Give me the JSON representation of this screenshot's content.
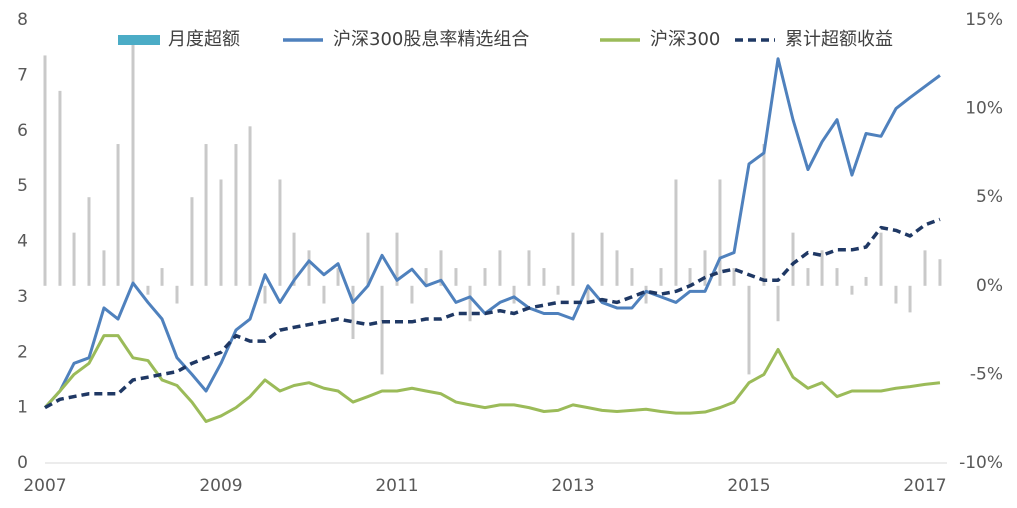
{
  "chart_data": {
    "type": "line",
    "x": [
      2007,
      2007.17,
      2007.33,
      2007.5,
      2007.67,
      2007.83,
      2008,
      2008.17,
      2008.33,
      2008.5,
      2008.67,
      2008.83,
      2009,
      2009.17,
      2009.33,
      2009.5,
      2009.67,
      2009.83,
      2010,
      2010.17,
      2010.33,
      2010.5,
      2010.67,
      2010.83,
      2011,
      2011.17,
      2011.33,
      2011.5,
      2011.67,
      2011.83,
      2012,
      2012.17,
      2012.33,
      2012.5,
      2012.67,
      2012.83,
      2013,
      2013.17,
      2013.33,
      2013.5,
      2013.67,
      2013.83,
      2014,
      2014.17,
      2014.33,
      2014.5,
      2014.67,
      2014.83,
      2015,
      2015.17,
      2015.33,
      2015.5,
      2015.67,
      2015.83,
      2016,
      2016.17,
      2016.33,
      2016.5,
      2016.67,
      2016.83,
      2017,
      2017.17
    ],
    "series": [
      {
        "name": "月度超额",
        "kind": "bar",
        "axis": "y2",
        "color": "#c9c9c9",
        "values": [
          13,
          11,
          3,
          5,
          2,
          8,
          14,
          -0.5,
          1,
          -1,
          5,
          8,
          6,
          8,
          9,
          -1,
          6,
          3,
          2,
          -1,
          1,
          -3,
          3,
          -5,
          3,
          -1,
          1,
          2,
          1,
          -2,
          1,
          2,
          -1,
          2,
          1,
          -0.5,
          3,
          -1,
          3,
          2,
          1,
          -1,
          1,
          6,
          1,
          2,
          6,
          1,
          -5,
          8,
          -2,
          3,
          1,
          2,
          1,
          -0.5,
          0.5,
          3,
          -1,
          -1.5,
          2,
          1.5
        ]
      },
      {
        "name": "沪深300股息率精选组合",
        "kind": "line",
        "color": "#4f81bd",
        "values": [
          1.0,
          1.3,
          1.8,
          1.9,
          2.8,
          2.6,
          3.25,
          2.9,
          2.6,
          1.9,
          1.6,
          1.3,
          1.8,
          2.4,
          2.6,
          3.4,
          2.9,
          3.3,
          3.65,
          3.4,
          3.6,
          2.9,
          3.2,
          3.75,
          3.3,
          3.5,
          3.2,
          3.3,
          2.9,
          3.0,
          2.7,
          2.9,
          3.0,
          2.8,
          2.7,
          2.7,
          2.6,
          3.2,
          2.9,
          2.8,
          2.8,
          3.1,
          3.0,
          2.9,
          3.1,
          3.1,
          3.7,
          3.8,
          5.4,
          5.6,
          7.3,
          6.2,
          5.3,
          5.8,
          6.2,
          5.2,
          5.95,
          5.9,
          6.4,
          6.6,
          6.8,
          7.0
        ]
      },
      {
        "name": "沪深300",
        "kind": "line",
        "color": "#9bbb59",
        "values": [
          1.0,
          1.3,
          1.6,
          1.8,
          2.3,
          2.3,
          1.9,
          1.85,
          1.5,
          1.4,
          1.1,
          0.75,
          0.85,
          1.0,
          1.2,
          1.5,
          1.3,
          1.4,
          1.45,
          1.35,
          1.3,
          1.1,
          1.2,
          1.3,
          1.3,
          1.35,
          1.3,
          1.25,
          1.1,
          1.05,
          1.0,
          1.05,
          1.05,
          1.0,
          0.93,
          0.95,
          1.05,
          1.0,
          0.95,
          0.93,
          0.95,
          0.97,
          0.93,
          0.9,
          0.9,
          0.92,
          1.0,
          1.1,
          1.45,
          1.6,
          2.05,
          1.55,
          1.35,
          1.45,
          1.2,
          1.3,
          1.3,
          1.3,
          1.35,
          1.38,
          1.42,
          1.45
        ]
      },
      {
        "name": "累计超额收益",
        "kind": "dashed",
        "color": "#1f3864",
        "values": [
          1.0,
          1.15,
          1.2,
          1.25,
          1.25,
          1.25,
          1.5,
          1.55,
          1.6,
          1.65,
          1.8,
          1.9,
          2.0,
          2.3,
          2.2,
          2.2,
          2.4,
          2.45,
          2.5,
          2.55,
          2.6,
          2.55,
          2.5,
          2.55,
          2.55,
          2.55,
          2.6,
          2.6,
          2.7,
          2.7,
          2.7,
          2.75,
          2.7,
          2.8,
          2.85,
          2.9,
          2.9,
          2.9,
          2.95,
          2.9,
          3.0,
          3.1,
          3.05,
          3.1,
          3.2,
          3.35,
          3.45,
          3.5,
          3.4,
          3.3,
          3.3,
          3.6,
          3.8,
          3.75,
          3.85,
          3.85,
          3.9,
          4.25,
          4.2,
          4.1,
          4.3,
          4.4
        ]
      }
    ],
    "xlim": [
      2007,
      2017.25
    ],
    "xticks": [
      2007,
      2009,
      2011,
      2013,
      2015,
      2017
    ],
    "ylim": [
      0,
      8
    ],
    "yticks": [
      0,
      1,
      2,
      3,
      4,
      5,
      6,
      7,
      8
    ],
    "y2lim": [
      -10,
      15
    ],
    "y2ticks": [
      {
        "value": -10,
        "label": "-10%"
      },
      {
        "value": -5,
        "label": "-5%"
      },
      {
        "value": 0,
        "label": "0%"
      },
      {
        "value": 5,
        "label": "5%"
      },
      {
        "value": 10,
        "label": "10%"
      },
      {
        "value": 15,
        "label": "15%"
      }
    ]
  }
}
